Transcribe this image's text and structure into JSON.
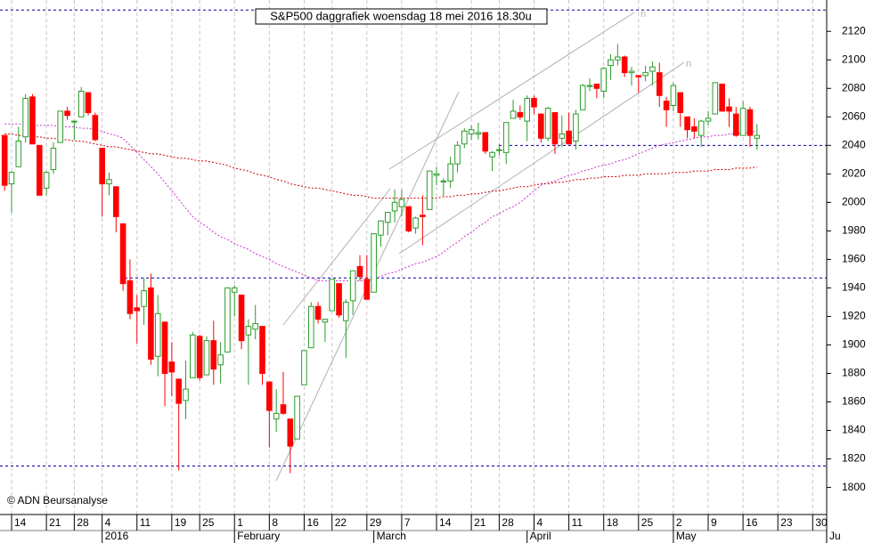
{
  "chart_data": {
    "type": "candlestick",
    "title": "S&P500 daggrafiek woensdag 18 mei 2016 18.30u",
    "credit": "© ADN Beursanalyse",
    "categories": [
      null,
      "14",
      null,
      null,
      null,
      null,
      "21",
      null,
      null,
      null,
      "28",
      null,
      null,
      null,
      "4",
      null,
      null,
      null,
      null,
      "11",
      null,
      null,
      null,
      null,
      "19",
      null,
      null,
      null,
      "25",
      null,
      null,
      null,
      null,
      "1",
      null,
      null,
      null,
      null,
      "8",
      null,
      null,
      null,
      null,
      "16",
      null,
      null,
      null,
      "22",
      null,
      null,
      null,
      null,
      "29",
      null,
      null,
      null,
      null,
      "7",
      null,
      null,
      null,
      null,
      "14",
      null,
      null,
      null,
      null,
      "21",
      null,
      null,
      null,
      "28",
      null,
      null,
      null,
      null,
      "4",
      null,
      null,
      null,
      null,
      "11",
      null,
      null,
      null,
      null,
      "18",
      null,
      null,
      null,
      null,
      "25",
      null,
      null,
      null,
      null,
      "2",
      null,
      null,
      null,
      null,
      "9",
      null,
      null,
      null,
      null,
      "16",
      null,
      null,
      null,
      null,
      "23",
      null,
      null,
      null,
      null,
      "30",
      null,
      null
    ],
    "month_labels": [
      null,
      null,
      null,
      null,
      null,
      null,
      null,
      null,
      null,
      null,
      null,
      null,
      null,
      null,
      "2016",
      null,
      null,
      null,
      null,
      null,
      null,
      null,
      null,
      null,
      null,
      null,
      null,
      null,
      null,
      null,
      null,
      null,
      null,
      "February",
      null,
      null,
      null,
      null,
      null,
      null,
      null,
      null,
      null,
      null,
      null,
      null,
      null,
      null,
      null,
      null,
      null,
      null,
      null,
      "March",
      null,
      null,
      null,
      null,
      null,
      null,
      null,
      null,
      null,
      null,
      null,
      null,
      null,
      null,
      null,
      null,
      null,
      null,
      null,
      null,
      null,
      "April",
      null,
      null,
      null,
      null,
      null,
      null,
      null,
      null,
      null,
      null,
      null,
      null,
      null,
      null,
      null,
      null,
      null,
      null,
      null,
      null,
      "May",
      null,
      null,
      null,
      null,
      null,
      null,
      null,
      null,
      null,
      null,
      null,
      null,
      null,
      null,
      null,
      null,
      null,
      null,
      null,
      null,
      null,
      "Ju"
    ],
    "open": [
      2047,
      2013,
      2025,
      2046,
      2074,
      2040,
      2010,
      2023,
      2042,
      2064,
      2057,
      2060,
      2077,
      2061,
      2038,
      2013,
      2011,
      1985,
      1945,
      1926,
      1927,
      1940,
      1892,
      1916,
      1888,
      1876,
      1861,
      1877,
      1906,
      1879,
      1903,
      1886,
      1895,
      1937,
      1935,
      1907,
      1911,
      1913,
      1874,
      1848,
      1858,
      1848,
      1834,
      1872,
      1898,
      1927,
      1916,
      1924,
      1943,
      1917,
      1931,
      1955,
      1946,
      1937,
      1977,
      1986,
      1994,
      1997,
      1997,
      1982,
      1991,
      1995,
      2019,
      2015,
      2015,
      2027,
      2041,
      2048,
      2048,
      2049,
      2032,
      2037,
      2035,
      2059,
      2063,
      2057,
      2073,
      2062,
      2045,
      2063,
      2045,
      2050,
      2043,
      2065,
      2082,
      2083,
      2078,
      2096,
      2100,
      2102,
      2091,
      2089,
      2089,
      2092,
      2091,
      2071,
      2068,
      2077,
      2060,
      2053,
      2047,
      2057,
      2062,
      2083,
      2067,
      2062,
      2047,
      2065,
      2045,
      null,
      null,
      null,
      null,
      null,
      null,
      null,
      null,
      null,
      null
    ],
    "high": [
      2047,
      2022,
      2053,
      2076,
      2076,
      2040,
      2022,
      2042,
      2064,
      2067,
      2057,
      2081,
      2077,
      2063,
      2038,
      2021,
      2011,
      1985,
      1960,
      1935,
      1947,
      1950,
      1935,
      1916,
      1902,
      1876,
      1889,
      1909,
      1907,
      1906,
      1917,
      1902,
      1940,
      1942,
      1935,
      1918,
      1928,
      1913,
      1874,
      1869,
      1881,
      1848,
      1864,
      1896,
      1930,
      1930,
      1918,
      1946,
      1943,
      1932,
      1952,
      1963,
      1963,
      1978,
      1987,
      1993,
      2009,
      2009,
      1997,
      1990,
      2005,
      2022,
      2025,
      2017,
      2032,
      2043,
      2052,
      2054,
      2056,
      2049,
      2036,
      2041,
      2056,
      2072,
      2068,
      2075,
      2075,
      2062,
      2067,
      2063,
      2061,
      2063,
      2065,
      2083,
      2087,
      2083,
      2095,
      2104,
      2111,
      2103,
      2095,
      2089,
      2096,
      2099,
      2098,
      2074,
      2084,
      2077,
      2060,
      2059,
      2058,
      2064,
      2084,
      2083,
      2073,
      2067,
      2071,
      2067,
      2055,
      null,
      null,
      null,
      null,
      null,
      null,
      null,
      null,
      null,
      null
    ],
    "low": [
      2008,
      1993,
      2025,
      2042,
      2041,
      2005,
      2005,
      2020,
      2042,
      2058,
      2044,
      2060,
      2061,
      2043,
      1990,
      2005,
      1979,
      1938,
      1918,
      1901,
      1914,
      1886,
      1878,
      1857,
      1864,
      1812,
      1848,
      1877,
      1875,
      1879,
      1872,
      1873,
      1895,
      1920,
      1897,
      1872,
      1904,
      1872,
      1828,
      1839,
      1851,
      1810,
      1834,
      1872,
      1898,
      1915,
      1902,
      1924,
      1919,
      1891,
      1921,
      1945,
      1932,
      1937,
      1969,
      1977,
      1986,
      1990,
      1979,
      1978,
      1970,
      1995,
      2012,
      2004,
      2010,
      2021,
      2038,
      2044,
      2044,
      2034,
      2022,
      2033,
      2027,
      2059,
      2058,
      2043,
      2062,
      2042,
      2043,
      2034,
      2039,
      2041,
      2037,
      2065,
      2078,
      2073,
      2073,
      2086,
      2096,
      2088,
      2082,
      2077,
      2085,
      2082,
      2067,
      2053,
      2064,
      2053,
      2045,
      2045,
      2039,
      2054,
      2062,
      2064,
      2053,
      2046,
      2047,
      2039,
      2037,
      null,
      null,
      null,
      null,
      null,
      null,
      null,
      null,
      null,
      null
    ],
    "close": [
      2012,
      2021,
      2043,
      2073,
      2041,
      2005,
      2021,
      2038,
      2064,
      2061,
      2057,
      2078,
      2063,
      2044,
      2013,
      2016,
      1990,
      1943,
      1922,
      1924,
      1938,
      1890,
      1922,
      1880,
      1881,
      1859,
      1869,
      1907,
      1877,
      1903,
      1883,
      1893,
      1940,
      1940,
      1903,
      1913,
      1915,
      1880,
      1854,
      1852,
      1852,
      1829,
      1864,
      1896,
      1927,
      1918,
      1918,
      1946,
      1921,
      1930,
      1952,
      1948,
      1932,
      1978,
      1987,
      1993,
      2000,
      2002,
      1980,
      1989,
      1990,
      2022,
      2020,
      2015,
      2027,
      2040,
      2050,
      2051,
      2049,
      2036,
      2035,
      2037,
      2056,
      2064,
      2060,
      2073,
      2067,
      2045,
      2066,
      2041,
      2048,
      2041,
      2062,
      2082,
      2082,
      2080,
      2094,
      2100,
      2102,
      2091,
      2092,
      2088,
      2091,
      2095,
      2075,
      2065,
      2082,
      2063,
      2051,
      2050,
      2057,
      2059,
      2084,
      2064,
      2064,
      2047,
      2066,
      2047,
      2047,
      null,
      null,
      null,
      null,
      null,
      null,
      null,
      null,
      null,
      null
    ],
    "up_color": "#2a9d2a",
    "down_color": "#ff0000",
    "ma_lines": [
      {
        "color": "#cc33cc",
        "values": [
          2055,
          2055,
          2055,
          2055,
          2054,
          2054,
          2054,
          2054,
          2053,
          2053,
          2053,
          2052,
          2052,
          2051,
          2050,
          2048,
          2047,
          2045,
          2040,
          2035,
          2030,
          2025,
          2020,
          2014,
          2008,
          2002,
          1996,
          1990,
          1986,
          1983,
          1979,
          1976,
          1974,
          1971,
          1969,
          1967,
          1964,
          1962,
          1960,
          1957,
          1955,
          1953,
          1951,
          1949,
          1947,
          1945,
          1945,
          1945,
          1945,
          1945,
          1945,
          1945,
          1945,
          1947,
          1948,
          1950,
          1951,
          1953,
          1955,
          1957,
          1958,
          1960,
          1962,
          1965,
          1969,
          1972,
          1976,
          1979,
          1983,
          1986,
          1990,
          1992,
          1995,
          1997,
          2000,
          2004,
          2008,
          2012,
          2014,
          2015,
          2017,
          2019,
          2020,
          2022,
          2023,
          2025,
          2026,
          2027,
          2029,
          2030,
          2032,
          2034,
          2036,
          2038,
          2040,
          2041,
          2042,
          2043,
          2044,
          2045,
          2046,
          2046,
          2047,
          2047,
          2048,
          2048,
          2049,
          2049,
          2050,
          null,
          null,
          null,
          null,
          null,
          null,
          null,
          null,
          null,
          null
        ]
      },
      {
        "color": "#cc0000",
        "values": [
          2048,
          2048,
          2047,
          2047,
          2046,
          2046,
          2045,
          2045,
          2044,
          2044,
          2043,
          2043,
          2042,
          2041,
          2040,
          2039,
          2039,
          2038,
          2037,
          2036,
          2035,
          2034,
          2034,
          2033,
          2032,
          2031,
          2031,
          2030,
          2029,
          2029,
          2028,
          2027,
          2026,
          2024,
          2023,
          2022,
          2020,
          2019,
          2018,
          2016,
          2015,
          2013,
          2012,
          2011,
          2010,
          2010,
          2009,
          2008,
          2007,
          2006,
          2005,
          2005,
          2004,
          2003,
          2003,
          2003,
          2003,
          2003,
          2003,
          2003,
          2003,
          2003,
          2003,
          2004,
          2004,
          2005,
          2005,
          2006,
          2006,
          2007,
          2008,
          2008,
          2009,
          2010,
          2011,
          2011,
          2012,
          2013,
          2013,
          2014,
          2014,
          2015,
          2016,
          2016,
          2017,
          2017,
          2018,
          2018,
          2018,
          2019,
          2019,
          2019,
          2020,
          2020,
          2020,
          2020,
          2021,
          2021,
          2021,
          2022,
          2022,
          2022,
          2023,
          2023,
          2023,
          2024,
          2024,
          2024,
          2025,
          null,
          null,
          null,
          null,
          null,
          null,
          null,
          null,
          null,
          null
        ]
      }
    ],
    "levels": [
      2135,
      2040,
      1947,
      1815
    ],
    "level_color": "#0000aa",
    "trend_marks": [
      "n",
      "n"
    ],
    "ylim": [
      1781,
      2142
    ],
    "yticks": [
      1800,
      1820,
      1840,
      1860,
      1880,
      1900,
      1920,
      1940,
      1960,
      1980,
      2000,
      2020,
      2040,
      2060,
      2080,
      2100,
      2120
    ],
    "grid": true
  }
}
